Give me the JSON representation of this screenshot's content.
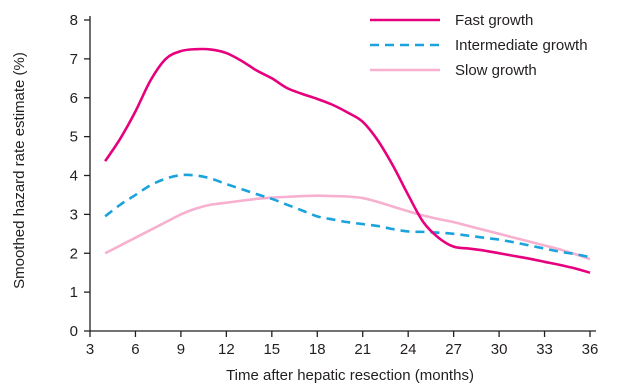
{
  "chart_data": {
    "type": "line",
    "title": "",
    "xlabel": "Time after hepatic resection (months)",
    "ylabel": "Smoothed hazard rate estimate (%)",
    "xlim": [
      3,
      36
    ],
    "ylim": [
      0,
      8
    ],
    "xticks": [
      3,
      6,
      9,
      12,
      15,
      18,
      21,
      24,
      27,
      30,
      33,
      36
    ],
    "yticks": [
      0,
      1,
      2,
      3,
      4,
      5,
      6,
      7,
      8
    ],
    "grid": false,
    "legend_position": "top-right",
    "series": [
      {
        "name": "Fast growth",
        "color": "#e6007e",
        "dash": "solid",
        "x": [
          4,
          5,
          6,
          7,
          8,
          9,
          10,
          11,
          12,
          13,
          14,
          15,
          16,
          17,
          18,
          19,
          20,
          21,
          22,
          23,
          24,
          25,
          26,
          27,
          28,
          29,
          30,
          31,
          32,
          33,
          34,
          35,
          36
        ],
        "y": [
          4.37,
          4.95,
          5.65,
          6.45,
          7.0,
          7.2,
          7.25,
          7.24,
          7.15,
          6.95,
          6.7,
          6.5,
          6.25,
          6.1,
          5.97,
          5.82,
          5.62,
          5.38,
          4.9,
          4.25,
          3.5,
          2.8,
          2.4,
          2.17,
          2.12,
          2.07,
          2.0,
          1.93,
          1.86,
          1.78,
          1.7,
          1.61,
          1.5
        ]
      },
      {
        "name": "Intermediate growth",
        "color": "#1aa3dd",
        "dash": "dashed",
        "x": [
          4,
          5,
          6,
          7,
          8,
          9,
          10,
          11,
          12,
          13,
          14,
          15,
          16,
          17,
          18,
          19,
          20,
          21,
          22,
          23,
          24,
          25,
          26,
          27,
          28,
          29,
          30,
          31,
          32,
          33,
          34,
          35,
          36
        ],
        "y": [
          2.95,
          3.25,
          3.5,
          3.75,
          3.92,
          4.01,
          4.0,
          3.92,
          3.78,
          3.65,
          3.52,
          3.4,
          3.25,
          3.1,
          2.95,
          2.87,
          2.8,
          2.75,
          2.7,
          2.62,
          2.56,
          2.55,
          2.53,
          2.5,
          2.45,
          2.4,
          2.35,
          2.28,
          2.2,
          2.12,
          2.04,
          1.98,
          1.9
        ]
      },
      {
        "name": "Slow growth",
        "color": "#f7b0cf",
        "dash": "solid",
        "x": [
          4,
          5,
          6,
          7,
          8,
          9,
          10,
          11,
          12,
          13,
          14,
          15,
          16,
          17,
          18,
          19,
          20,
          21,
          22,
          23,
          24,
          25,
          26,
          27,
          28,
          29,
          30,
          31,
          32,
          33,
          34,
          35,
          36
        ],
        "y": [
          2.0,
          2.2,
          2.4,
          2.6,
          2.8,
          3.0,
          3.15,
          3.25,
          3.3,
          3.35,
          3.4,
          3.43,
          3.45,
          3.47,
          3.48,
          3.47,
          3.46,
          3.42,
          3.32,
          3.2,
          3.08,
          2.97,
          2.88,
          2.8,
          2.7,
          2.6,
          2.5,
          2.4,
          2.3,
          2.2,
          2.1,
          1.98,
          1.85
        ]
      }
    ]
  }
}
